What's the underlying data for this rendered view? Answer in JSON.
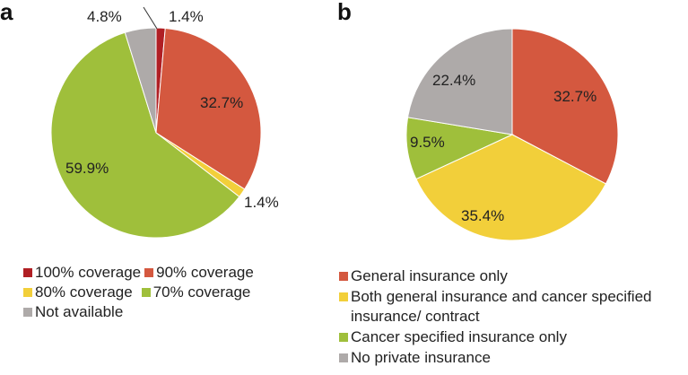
{
  "chart_data": [
    {
      "panel": "a",
      "type": "pie",
      "slices": [
        {
          "name": "100% coverage",
          "value": 1.4,
          "label": "1.4%",
          "color": "#b01f24"
        },
        {
          "name": "90% coverage",
          "value": 32.7,
          "label": "32.7%",
          "color": "#d4583f"
        },
        {
          "name": "80% coverage",
          "value": 1.4,
          "label": "1.4%",
          "color": "#f2cf3a"
        },
        {
          "name": "70% coverage",
          "value": 59.9,
          "label": "59.9%",
          "color": "#9fbf3b"
        },
        {
          "name": "Not available",
          "value": 4.8,
          "label": "4.8%",
          "color": "#aeaaa9"
        }
      ],
      "start_angle_deg": 0,
      "direction": "clockwise",
      "legend": [
        "100% coverage",
        "90% coverage",
        "80% coverage",
        "70% coverage",
        "Not available"
      ]
    },
    {
      "panel": "b",
      "type": "pie",
      "slices": [
        {
          "name": "General insurance only",
          "value": 32.7,
          "label": "32.7%",
          "color": "#d4583f"
        },
        {
          "name": "Both general insurance and cancer specified insurance/ contract",
          "value": 35.4,
          "label": "35.4%",
          "color": "#f2cf3a"
        },
        {
          "name": "Cancer specified insurance only",
          "value": 9.5,
          "label": "9.5%",
          "color": "#9fbf3b"
        },
        {
          "name": "No private insurance",
          "value": 22.4,
          "label": "22.4%",
          "color": "#aeaaa9"
        }
      ],
      "start_angle_deg": 0,
      "direction": "clockwise",
      "legend": [
        "General insurance only",
        "Both general insurance and cancer specified insurance/ contract",
        "Cancer specified insurance only",
        "No private insurance"
      ]
    }
  ]
}
